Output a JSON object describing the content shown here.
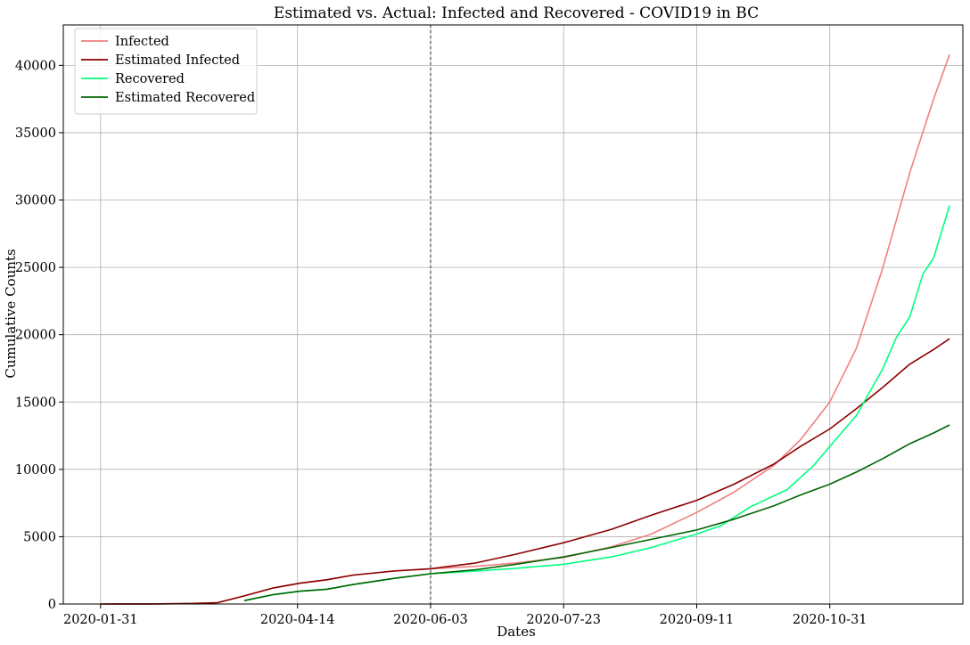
{
  "chart_data": {
    "type": "line",
    "title": "Estimated vs. Actual: Infected and Recovered - COVID19 in BC",
    "xlabel": "Dates",
    "ylabel": "Cumulative Counts",
    "x_tick_labels": [
      "2020-01-31",
      "2020-04-14",
      "2020-06-03",
      "2020-07-23",
      "2020-09-11",
      "2020-10-31"
    ],
    "x_tick_dates": [
      "2020-01-31",
      "2020-04-14",
      "2020-06-03",
      "2020-07-23",
      "2020-09-11",
      "2020-10-31"
    ],
    "y_ticks": [
      0,
      5000,
      10000,
      15000,
      20000,
      25000,
      30000,
      35000,
      40000
    ],
    "xlim": [
      "2020-01-17",
      "2020-12-20"
    ],
    "ylim": [
      0,
      43000
    ],
    "grid": true,
    "legend_position": "top-left",
    "vline_date": "2020-06-03",
    "series": [
      {
        "name": "Infected",
        "color": "#f08080",
        "points": [
          [
            "2020-01-31",
            1
          ],
          [
            "2020-02-20",
            8
          ],
          [
            "2020-03-05",
            40
          ],
          [
            "2020-03-15",
            100
          ],
          [
            "2020-03-25",
            600
          ],
          [
            "2020-04-05",
            1200
          ],
          [
            "2020-04-15",
            1550
          ],
          [
            "2020-04-25",
            1800
          ],
          [
            "2020-05-05",
            2150
          ],
          [
            "2020-05-20",
            2450
          ],
          [
            "2020-06-03",
            2620
          ],
          [
            "2020-06-20",
            2800
          ],
          [
            "2020-07-05",
            3050
          ],
          [
            "2020-07-23",
            3450
          ],
          [
            "2020-08-10",
            4250
          ],
          [
            "2020-08-25",
            5200
          ],
          [
            "2020-09-11",
            6800
          ],
          [
            "2020-09-25",
            8300
          ],
          [
            "2020-10-10",
            10300
          ],
          [
            "2020-10-20",
            12200
          ],
          [
            "2020-10-31",
            15000
          ],
          [
            "2020-11-10",
            19000
          ],
          [
            "2020-11-20",
            25000
          ],
          [
            "2020-11-30",
            32000
          ],
          [
            "2020-12-09",
            37500
          ],
          [
            "2020-12-15",
            40800
          ]
        ]
      },
      {
        "name": "Estimated Infected",
        "color": "#8b0000",
        "points": [
          [
            "2020-01-31",
            1
          ],
          [
            "2020-02-20",
            8
          ],
          [
            "2020-03-05",
            40
          ],
          [
            "2020-03-15",
            100
          ],
          [
            "2020-03-25",
            600
          ],
          [
            "2020-04-05",
            1200
          ],
          [
            "2020-04-15",
            1550
          ],
          [
            "2020-04-25",
            1800
          ],
          [
            "2020-05-05",
            2150
          ],
          [
            "2020-05-20",
            2450
          ],
          [
            "2020-06-03",
            2620
          ],
          [
            "2020-06-20",
            3050
          ],
          [
            "2020-07-05",
            3700
          ],
          [
            "2020-07-23",
            4550
          ],
          [
            "2020-08-10",
            5550
          ],
          [
            "2020-08-25",
            6600
          ],
          [
            "2020-09-11",
            7700
          ],
          [
            "2020-09-25",
            8900
          ],
          [
            "2020-10-10",
            10400
          ],
          [
            "2020-10-20",
            11700
          ],
          [
            "2020-10-31",
            13000
          ],
          [
            "2020-11-10",
            14500
          ],
          [
            "2020-11-20",
            16100
          ],
          [
            "2020-11-30",
            17800
          ],
          [
            "2020-12-09",
            18900
          ],
          [
            "2020-12-15",
            19700
          ]
        ]
      },
      {
        "name": "Recovered",
        "color": "#00ff7f",
        "points": [
          [
            "2020-03-25",
            250
          ],
          [
            "2020-04-05",
            700
          ],
          [
            "2020-04-15",
            950
          ],
          [
            "2020-04-25",
            1100
          ],
          [
            "2020-05-05",
            1450
          ],
          [
            "2020-05-20",
            1900
          ],
          [
            "2020-06-03",
            2250
          ],
          [
            "2020-06-20",
            2450
          ],
          [
            "2020-07-05",
            2650
          ],
          [
            "2020-07-23",
            2950
          ],
          [
            "2020-08-10",
            3500
          ],
          [
            "2020-08-25",
            4200
          ],
          [
            "2020-09-11",
            5200
          ],
          [
            "2020-09-20",
            5800
          ],
          [
            "2020-10-01",
            7200
          ],
          [
            "2020-10-15",
            8500
          ],
          [
            "2020-10-25",
            10300
          ],
          [
            "2020-10-31",
            11700
          ],
          [
            "2020-11-10",
            14000
          ],
          [
            "2020-11-20",
            17500
          ],
          [
            "2020-11-25",
            19800
          ],
          [
            "2020-11-30",
            21300
          ],
          [
            "2020-12-05",
            24500
          ],
          [
            "2020-12-09",
            25700
          ],
          [
            "2020-12-15",
            29600
          ]
        ]
      },
      {
        "name": "Estimated Recovered",
        "color": "#006400",
        "points": [
          [
            "2020-03-25",
            250
          ],
          [
            "2020-04-05",
            700
          ],
          [
            "2020-04-15",
            950
          ],
          [
            "2020-04-25",
            1100
          ],
          [
            "2020-05-05",
            1450
          ],
          [
            "2020-05-20",
            1900
          ],
          [
            "2020-06-03",
            2250
          ],
          [
            "2020-06-20",
            2550
          ],
          [
            "2020-07-05",
            2950
          ],
          [
            "2020-07-23",
            3500
          ],
          [
            "2020-08-10",
            4200
          ],
          [
            "2020-08-25",
            4800
          ],
          [
            "2020-09-11",
            5500
          ],
          [
            "2020-09-25",
            6300
          ],
          [
            "2020-10-10",
            7300
          ],
          [
            "2020-10-20",
            8100
          ],
          [
            "2020-10-31",
            8900
          ],
          [
            "2020-11-10",
            9800
          ],
          [
            "2020-11-20",
            10800
          ],
          [
            "2020-11-30",
            11900
          ],
          [
            "2020-12-09",
            12700
          ],
          [
            "2020-12-15",
            13300
          ]
        ]
      }
    ]
  }
}
